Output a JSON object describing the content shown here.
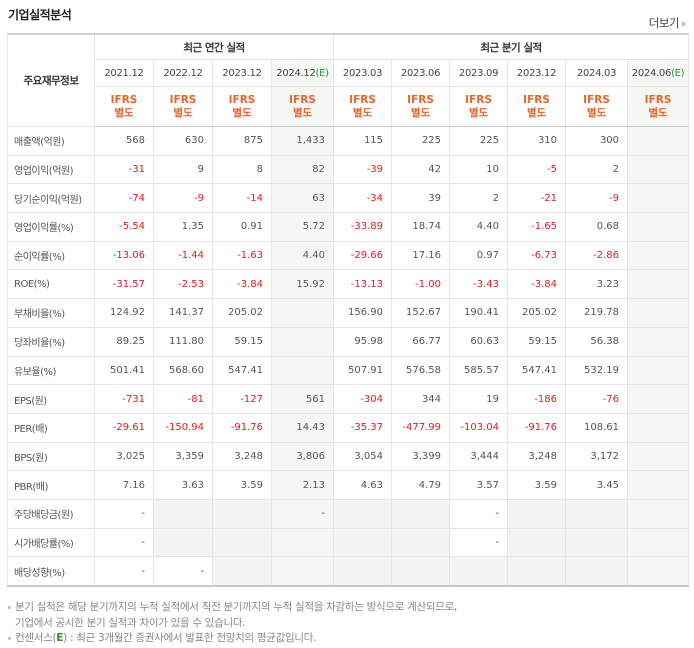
{
  "header": {
    "title": "기업실적분석",
    "more_label": "더보기"
  },
  "table": {
    "label_header": "주요재무정보",
    "groups": {
      "annual": "최근 연간 실적",
      "quarterly": "최근 분기 실적"
    },
    "estimate_mark": "(E)",
    "ifrs": {
      "line1": "IFRS",
      "line2": "별도"
    },
    "annual_periods": [
      "2021.12",
      "2022.12",
      "2023.12",
      "2024.12"
    ],
    "quarterly_periods": [
      "2023.03",
      "2023.06",
      "2023.09",
      "2023.12",
      "2024.03",
      "2024.06"
    ],
    "rows": [
      {
        "label": "매출액(억원)",
        "annual": [
          "568",
          "630",
          "875",
          "1,433"
        ],
        "quarterly": [
          "115",
          "225",
          "225",
          "310",
          "300",
          ""
        ]
      },
      {
        "label": "영업이익(억원)",
        "annual": [
          "-31",
          "9",
          "8",
          "82"
        ],
        "quarterly": [
          "-39",
          "42",
          "10",
          "-5",
          "2",
          ""
        ]
      },
      {
        "label": "당기순이익(억원)",
        "annual": [
          "-74",
          "-9",
          "-14",
          "63"
        ],
        "quarterly": [
          "-34",
          "39",
          "2",
          "-21",
          "-9",
          ""
        ]
      },
      {
        "label": "영업이익률(%)",
        "annual": [
          "-5.54",
          "1.35",
          "0.91",
          "5.72"
        ],
        "quarterly": [
          "-33.89",
          "18.74",
          "4.40",
          "-1.65",
          "0.68",
          ""
        ]
      },
      {
        "label": "순이익률(%)",
        "annual": [
          "-13.06",
          "-1.44",
          "-1.63",
          "4.40"
        ],
        "quarterly": [
          "-29.66",
          "17.16",
          "0.97",
          "-6.73",
          "-2.86",
          ""
        ]
      },
      {
        "label": "ROE(%)",
        "annual": [
          "-31.57",
          "-2.53",
          "-3.84",
          "15.92"
        ],
        "quarterly": [
          "-13.13",
          "-1.00",
          "-3.43",
          "-3.84",
          "3.23",
          ""
        ]
      },
      {
        "label": "부채비율(%)",
        "annual": [
          "124.92",
          "141.37",
          "205.02",
          ""
        ],
        "quarterly": [
          "156.90",
          "152.67",
          "190.41",
          "205.02",
          "219.78",
          ""
        ]
      },
      {
        "label": "당좌비율(%)",
        "annual": [
          "89.25",
          "111.80",
          "59.15",
          ""
        ],
        "quarterly": [
          "95.98",
          "66.77",
          "60.63",
          "59.15",
          "56.38",
          ""
        ]
      },
      {
        "label": "유보율(%)",
        "annual": [
          "501.41",
          "568.60",
          "547.41",
          ""
        ],
        "quarterly": [
          "507.91",
          "576.58",
          "585.57",
          "547.41",
          "532.19",
          ""
        ]
      },
      {
        "label": "EPS(원)",
        "annual": [
          "-731",
          "-81",
          "-127",
          "561"
        ],
        "quarterly": [
          "-304",
          "344",
          "19",
          "-186",
          "-76",
          ""
        ]
      },
      {
        "label": "PER(배)",
        "annual": [
          "-29.61",
          "-150.94",
          "-91.76",
          "14.43"
        ],
        "quarterly": [
          "-35.37",
          "-477.99",
          "-103.04",
          "-91.76",
          "108.61",
          ""
        ]
      },
      {
        "label": "BPS(원)",
        "annual": [
          "3,025",
          "3,359",
          "3,248",
          "3,806"
        ],
        "quarterly": [
          "3,054",
          "3,399",
          "3,444",
          "3,248",
          "3,172",
          ""
        ]
      },
      {
        "label": "PBR(배)",
        "annual": [
          "7.16",
          "3.63",
          "3.59",
          "2.13"
        ],
        "quarterly": [
          "4.63",
          "4.79",
          "3.57",
          "3.59",
          "3.45",
          ""
        ]
      },
      {
        "label": "주당배당금(원)",
        "annual": [
          "-",
          "",
          "",
          "-"
        ],
        "quarterly": [
          "",
          "",
          "-",
          "",
          "",
          ""
        ]
      },
      {
        "label": "시가배당률(%)",
        "annual": [
          "-",
          "",
          "",
          ""
        ],
        "quarterly": [
          "",
          "",
          "-",
          "",
          "",
          ""
        ]
      },
      {
        "label": "배당성향(%)",
        "annual": [
          "-",
          "-",
          "",
          ""
        ],
        "quarterly": [
          "",
          "",
          "",
          "",
          "",
          ""
        ]
      }
    ]
  },
  "notes": {
    "line1": "분기 실적은 해당 분기까지의 누적 실적에서 직전 분기까지의 누적 실적을 차감하는 방식으로 계산되므로,",
    "line2": "기업에서 공시한 분기 실적과 차이가 있을 수 있습니다.",
    "line3_prefix": "컨센서스(",
    "line3_e": "E",
    "line3_suffix": ") : 최근 3개월간 증권사에서 발표한 전망치의 평균값입니다."
  },
  "colors": {
    "negative": "#e01c1c",
    "ifrs": "#e8652b",
    "estimate_bg": "#f3f8f3",
    "estimate_mark": "#2f8f3f"
  }
}
